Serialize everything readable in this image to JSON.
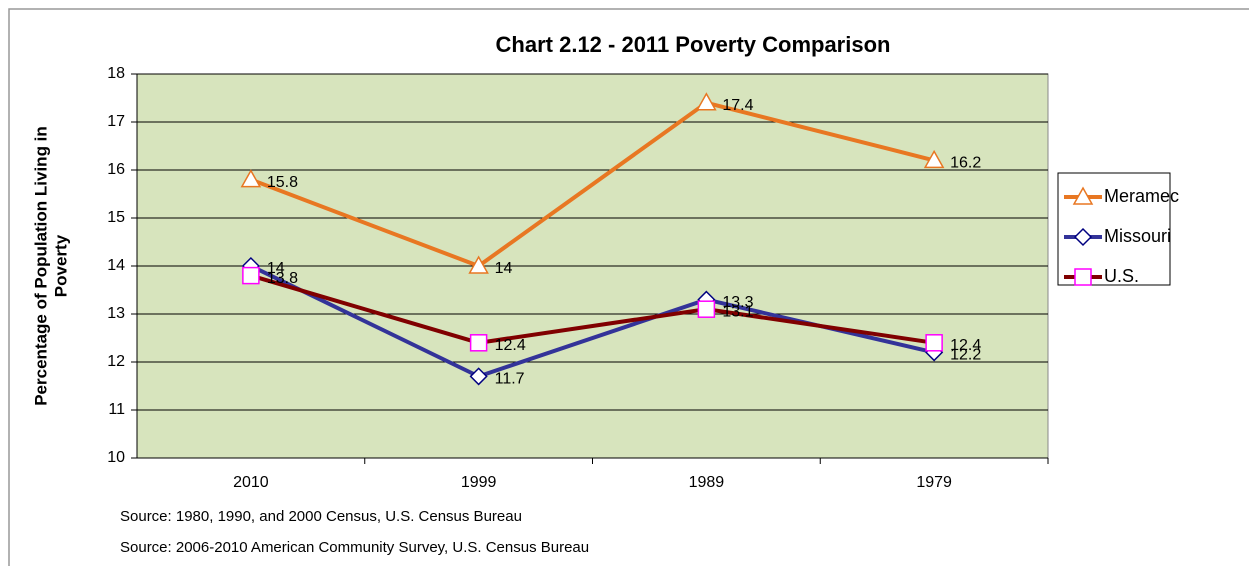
{
  "chart_data": {
    "type": "line",
    "title": "Chart 2.12 - 2011 Poverty Comparison",
    "ylabel": [
      "Percentage of Population Living in",
      "Poverty"
    ],
    "categories": [
      "2010",
      "1999",
      "1989",
      "1979"
    ],
    "series": [
      {
        "name": "Meramec",
        "color": "#e87722",
        "marker": "triangle",
        "marker_color": "#e87722",
        "values": [
          15.8,
          14,
          17.4,
          16.2
        ]
      },
      {
        "name": "Missouri",
        "color": "#333399",
        "marker": "diamond",
        "marker_color": "#000080",
        "values": [
          14,
          11.7,
          13.3,
          12.2
        ]
      },
      {
        "name": "U.S.",
        "color": "#800000",
        "marker": "square",
        "marker_color": "#ff00ff",
        "values": [
          13.8,
          12.4,
          13.1,
          12.4
        ]
      }
    ],
    "ylim": [
      10,
      18
    ],
    "yticks": [
      10,
      11,
      12,
      13,
      14,
      15,
      16,
      17,
      18
    ],
    "grid": true,
    "plot_background": "#d7e4bd",
    "legend": "right",
    "notes": [
      "Source:  1980, 1990, and 2000 Census, U.S. Census Bureau",
      "Source: 2006-2010 American Community Survey, U.S. Census Bureau"
    ]
  }
}
